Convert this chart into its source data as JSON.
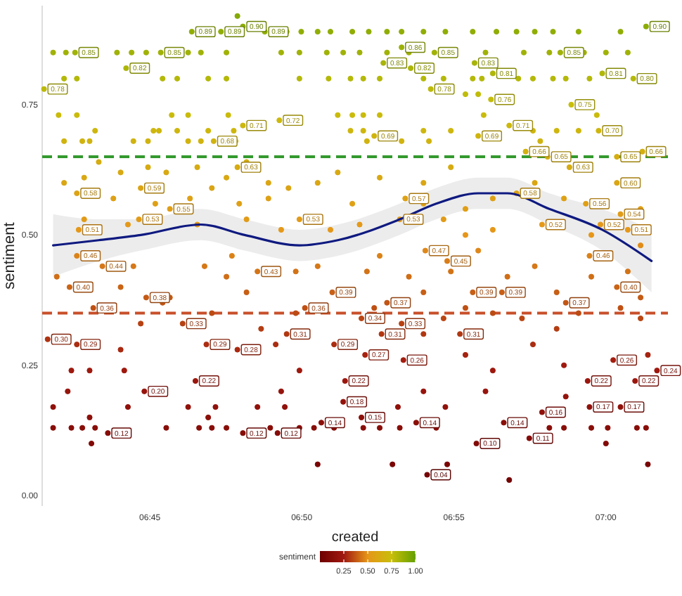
{
  "chart_data": {
    "type": "scatter",
    "xlabel": "created",
    "ylabel": "sentiment",
    "legend_title": "sentiment",
    "xlim": [
      6.691,
      7.034
    ],
    "xticks": [
      {
        "value": 6.75,
        "label": "06:45"
      },
      {
        "value": 6.8333,
        "label": "06:50"
      },
      {
        "value": 6.9167,
        "label": "06:55"
      },
      {
        "value": 7,
        "label": "07:00"
      }
    ],
    "ylim": [
      -0.02,
      0.94
    ],
    "yticks": [
      {
        "value": 0,
        "label": "0.00"
      },
      0.25,
      {
        "value": 0.5,
        "label": "0.50"
      },
      0.75
    ],
    "clim": [
      0,
      1
    ],
    "cticks": [
      0.25,
      {
        "value": 0.5,
        "label": "0.50"
      },
      0.75,
      {
        "value": 1,
        "label": "1.00"
      }
    ],
    "ref_lines": [
      {
        "axis": "y",
        "value": 0.65,
        "color": "#33992e",
        "line_style": "dashed"
      },
      {
        "axis": "y",
        "value": 0.35,
        "color": "#c8502a",
        "line_style": "dashed"
      }
    ],
    "series": [
      {
        "type": "scatter",
        "marker": "circle",
        "x": [
          6.798,
          6.825,
          6.833,
          6.842,
          6.849,
          6.861,
          6.87,
          6.88,
          6.888,
          6.9,
          6.912,
          6.927,
          6.94,
          6.951,
          6.961,
          6.971,
          6.985,
          7.008,
          6.697,
          6.704,
          6.732,
          6.74,
          6.748,
          6.771,
          6.778,
          6.792,
          6.822,
          6.832,
          6.847,
          6.856,
          6.865,
          6.88,
          6.892,
          6.934,
          6.955,
          6.969,
          6.988,
          7.0,
          7.012,
          6.703,
          6.71,
          6.757,
          6.765,
          6.782,
          6.792,
          6.832,
          6.848,
          6.86,
          6.867,
          6.876,
          6.9,
          6.911,
          6.927,
          6.932,
          6.952,
          6.96,
          6.971,
          6.978,
          6.991,
          6.923,
          6.93,
          6.7,
          6.71,
          6.762,
          6.771,
          6.793,
          6.853,
          6.861,
          6.867,
          6.876,
          6.933,
          6.995,
          6.72,
          6.752,
          6.755,
          6.765,
          6.782,
          6.796,
          6.86,
          6.867,
          6.9,
          6.915,
          6.96,
          6.973,
          6.985,
          6.703,
          6.713,
          6.717,
          6.741,
          6.749,
          6.771,
          6.778,
          6.797,
          6.869,
          6.888,
          6.903,
          6.964,
          6.722,
          6.734,
          6.749,
          6.759,
          6.776,
          6.792,
          6.803,
          6.815,
          6.714,
          6.703,
          6.73,
          6.753,
          6.772,
          6.784,
          6.799,
          6.815,
          6.826,
          6.842,
          6.853,
          6.861,
          6.876,
          6.9,
          6.915,
          6.9,
          6.923,
          6.938,
          6.961,
          6.977,
          7.019,
          6.911,
          6.865,
          6.714,
          6.738,
          6.776,
          6.803,
          6.822,
          6.849,
          6.923,
          6.938,
          6.992,
          7.019,
          6.699,
          6.734,
          6.741,
          6.761,
          6.78,
          6.792,
          6.795,
          6.803,
          6.83,
          6.842,
          6.869,
          6.876,
          6.892,
          6.9,
          6.915,
          6.93,
          6.946,
          6.961,
          6.973,
          6.992,
          7.012,
          7.019,
          6.784,
          6.757,
          6.873,
          6.923,
          6.985,
          7.008,
          6.745,
          6.811,
          6.83,
          6.9,
          6.911,
          6.938,
          6.954,
          6.973,
          7.019,
          6.734,
          6.819,
          6.923,
          6.96,
          7.023,
          6.707,
          6.717,
          6.736,
          6.832,
          6.938,
          6.977,
          6.705,
          6.822,
          6.9,
          6.934,
          6.978,
          6.697,
          6.738,
          6.771,
          6.786,
          6.809,
          6.824,
          6.886,
          6.912,
          6.697,
          6.707,
          6.713,
          6.72,
          6.759,
          6.777,
          6.784,
          6.792,
          6.816,
          6.832,
          6.84,
          6.851,
          6.867,
          6.876,
          6.887,
          6.907,
          6.969,
          6.977,
          6.992,
          7.001,
          7.017,
          7.022,
          6.718,
          6.717,
          6.782,
          6.842,
          6.883,
          6.913,
          6.947,
          7.023,
          7.0
        ],
        "values": [
          0.92,
          0.89,
          0.89,
          0.89,
          0.89,
          0.89,
          0.89,
          0.89,
          0.89,
          0.89,
          0.89,
          0.89,
          0.89,
          0.89,
          0.89,
          0.89,
          0.89,
          0.89,
          0.85,
          0.85,
          0.85,
          0.85,
          0.85,
          0.85,
          0.85,
          0.85,
          0.85,
          0.85,
          0.85,
          0.85,
          0.85,
          0.85,
          0.85,
          0.85,
          0.85,
          0.85,
          0.85,
          0.85,
          0.85,
          0.8,
          0.8,
          0.8,
          0.8,
          0.8,
          0.8,
          0.8,
          0.8,
          0.8,
          0.8,
          0.8,
          0.8,
          0.8,
          0.8,
          0.8,
          0.8,
          0.8,
          0.8,
          0.8,
          0.8,
          0.77,
          0.77,
          0.73,
          0.73,
          0.73,
          0.73,
          0.73,
          0.73,
          0.73,
          0.73,
          0.73,
          0.73,
          0.73,
          0.7,
          0.7,
          0.7,
          0.7,
          0.7,
          0.7,
          0.7,
          0.7,
          0.7,
          0.7,
          0.7,
          0.7,
          0.7,
          0.68,
          0.68,
          0.68,
          0.68,
          0.68,
          0.68,
          0.68,
          0.68,
          0.68,
          0.68,
          0.68,
          0.68,
          0.64,
          0.62,
          0.63,
          0.62,
          0.63,
          0.61,
          0.64,
          0.6,
          0.61,
          0.6,
          0.57,
          0.56,
          0.57,
          0.59,
          0.56,
          0.57,
          0.59,
          0.6,
          0.62,
          0.56,
          0.61,
          0.6,
          0.63,
          0.56,
          0.55,
          0.57,
          0.6,
          0.57,
          0.55,
          0.53,
          0.52,
          0.53,
          0.52,
          0.52,
          0.53,
          0.51,
          0.51,
          0.5,
          0.51,
          0.5,
          0.48,
          0.42,
          0.4,
          0.44,
          0.38,
          0.44,
          0.42,
          0.46,
          0.39,
          0.43,
          0.44,
          0.43,
          0.46,
          0.42,
          0.39,
          0.43,
          0.47,
          0.42,
          0.44,
          0.39,
          0.42,
          0.43,
          0.38,
          0.35,
          0.37,
          0.36,
          0.36,
          0.35,
          0.36,
          0.33,
          0.32,
          0.35,
          0.31,
          0.34,
          0.35,
          0.34,
          0.32,
          0.34,
          0.28,
          0.29,
          0.27,
          0.29,
          0.27,
          0.24,
          0.24,
          0.24,
          0.24,
          0.24,
          0.25,
          0.2,
          0.2,
          0.2,
          0.2,
          0.19,
          0.17,
          0.17,
          0.17,
          0.17,
          0.17,
          0.17,
          0.17,
          0.17,
          0.13,
          0.13,
          0.13,
          0.13,
          0.13,
          0.13,
          0.13,
          0.13,
          0.13,
          0.13,
          0.13,
          0.13,
          0.13,
          0.13,
          0.13,
          0.13,
          0.13,
          0.13,
          0.13,
          0.13,
          0.13,
          0.13,
          0.1,
          0.15,
          0.15,
          0.06,
          0.06,
          0.06,
          0.03,
          0.06,
          0.1
        ],
        "cvalues": [
          0.92,
          0.89,
          0.89,
          0.89,
          0.89,
          0.89,
          0.89,
          0.89,
          0.89,
          0.89,
          0.89,
          0.89,
          0.89,
          0.89,
          0.89,
          0.89,
          0.89,
          0.89,
          0.85,
          0.85,
          0.85,
          0.85,
          0.85,
          0.85,
          0.85,
          0.85,
          0.85,
          0.85,
          0.85,
          0.85,
          0.85,
          0.85,
          0.85,
          0.85,
          0.85,
          0.85,
          0.85,
          0.85,
          0.85,
          0.8,
          0.8,
          0.8,
          0.8,
          0.8,
          0.8,
          0.8,
          0.8,
          0.8,
          0.8,
          0.8,
          0.8,
          0.8,
          0.8,
          0.8,
          0.8,
          0.8,
          0.8,
          0.8,
          0.8,
          0.77,
          0.77,
          0.73,
          0.73,
          0.73,
          0.73,
          0.73,
          0.73,
          0.73,
          0.73,
          0.73,
          0.73,
          0.73,
          0.7,
          0.7,
          0.7,
          0.7,
          0.7,
          0.7,
          0.7,
          0.7,
          0.7,
          0.7,
          0.7,
          0.7,
          0.7,
          0.68,
          0.68,
          0.68,
          0.68,
          0.68,
          0.68,
          0.68,
          0.68,
          0.68,
          0.68,
          0.68,
          0.68,
          0.64,
          0.62,
          0.63,
          0.62,
          0.63,
          0.61,
          0.64,
          0.6,
          0.61,
          0.6,
          0.57,
          0.56,
          0.57,
          0.59,
          0.56,
          0.57,
          0.59,
          0.6,
          0.62,
          0.56,
          0.61,
          0.6,
          0.63,
          0.56,
          0.55,
          0.57,
          0.6,
          0.57,
          0.55,
          0.53,
          0.52,
          0.53,
          0.52,
          0.52,
          0.53,
          0.51,
          0.51,
          0.5,
          0.51,
          0.5,
          0.48,
          0.42,
          0.4,
          0.44,
          0.38,
          0.44,
          0.42,
          0.46,
          0.39,
          0.43,
          0.44,
          0.43,
          0.46,
          0.42,
          0.39,
          0.43,
          0.47,
          0.42,
          0.44,
          0.39,
          0.42,
          0.43,
          0.38,
          0.35,
          0.37,
          0.36,
          0.36,
          0.35,
          0.36,
          0.33,
          0.32,
          0.35,
          0.31,
          0.34,
          0.35,
          0.34,
          0.32,
          0.34,
          0.28,
          0.29,
          0.27,
          0.29,
          0.27,
          0.24,
          0.24,
          0.24,
          0.24,
          0.24,
          0.25,
          0.2,
          0.2,
          0.2,
          0.2,
          0.19,
          0.17,
          0.17,
          0.17,
          0.17,
          0.17,
          0.17,
          0.17,
          0.17,
          0.13,
          0.13,
          0.13,
          0.13,
          0.13,
          0.13,
          0.13,
          0.13,
          0.13,
          0.13,
          0.13,
          0.13,
          0.13,
          0.13,
          0.13,
          0.13,
          0.13,
          0.13,
          0.13,
          0.13,
          0.13,
          0.13,
          0.1,
          0.15,
          0.15,
          0.06,
          0.06,
          0.06,
          0.03,
          0.06,
          0.1
        ],
        "colors": [
          "#84aa03",
          "#90ad04",
          "#90ad04",
          "#90ad04",
          "#90ad04",
          "#90ad04",
          "#90ad04",
          "#90ad04",
          "#90ad04",
          "#90ad04",
          "#90ad04",
          "#90ad04",
          "#90ad04",
          "#90ad04",
          "#90ad04",
          "#90ad04",
          "#90ad04",
          "#90ad04",
          "#a0b206",
          "#a0b206",
          "#a0b206",
          "#a0b206",
          "#a0b206",
          "#a0b206",
          "#a0b206",
          "#a0b206",
          "#a0b206",
          "#a0b206",
          "#a0b206",
          "#a0b206",
          "#a0b206",
          "#a0b206",
          "#a0b206",
          "#a0b206",
          "#a0b206",
          "#a0b206",
          "#a0b206",
          "#a0b206",
          "#a0b206",
          "#b4b808",
          "#b4b808",
          "#b4b808",
          "#b4b808",
          "#b4b808",
          "#b4b808",
          "#b4b808",
          "#b4b808",
          "#b4b808",
          "#b4b808",
          "#b4b808",
          "#b4b808",
          "#b4b808",
          "#b4b808",
          "#b4b808",
          "#b4b808",
          "#b4b808",
          "#b4b808",
          "#b4b808",
          "#b4b808",
          "#c0bc09",
          "#c0bc09",
          "#cabb0b",
          "#cabb0b",
          "#cabb0b",
          "#cabb0b",
          "#cabb0b",
          "#cabb0b",
          "#cabb0b",
          "#cabb0b",
          "#cabb0b",
          "#cabb0b",
          "#cabb0b",
          "#ceb60d",
          "#ceb60d",
          "#ceb60d",
          "#ceb60d",
          "#ceb60d",
          "#ceb60d",
          "#ceb60d",
          "#ceb60d",
          "#ceb60d",
          "#ceb60d",
          "#ceb60d",
          "#ceb60d",
          "#ceb60d",
          "#d0b30e",
          "#d0b30e",
          "#d0b30e",
          "#d0b30e",
          "#d0b30e",
          "#d0b30e",
          "#d0b30e",
          "#d0b30e",
          "#d0b30e",
          "#d0b30e",
          "#d0b30e",
          "#d0b30e",
          "#d5ac11",
          "#d8a912",
          "#d6ab11",
          "#d8a912",
          "#d6ab11",
          "#d9a812",
          "#d5ac11",
          "#daa613",
          "#d9a812",
          "#daa613",
          "#dea115",
          "#dfa015",
          "#dea115",
          "#dba414",
          "#dfa015",
          "#dea115",
          "#dba414",
          "#daa613",
          "#d8a912",
          "#dfa015",
          "#d9a812",
          "#daa613",
          "#d6ab11",
          "#dfa015",
          "#e09e16",
          "#dea115",
          "#daa613",
          "#dea115",
          "#e09e16",
          "#e29b17",
          "#e49918",
          "#e29b17",
          "#e49918",
          "#e49918",
          "#e29b17",
          "#e59818",
          "#e59818",
          "#e69619",
          "#e59818",
          "#e69619",
          "#e08c18",
          "#d06e16",
          "#ca6415",
          "#d57817",
          "#c45a14",
          "#d57817",
          "#d06e16",
          "#db8217",
          "#c75f15",
          "#d27316",
          "#d57817",
          "#d27316",
          "#db8217",
          "#d06e16",
          "#c75f15",
          "#d27316",
          "#de8718",
          "#d06e16",
          "#d57817",
          "#c75f15",
          "#d06e16",
          "#d27316",
          "#c45a14",
          "#bc4b13",
          "#c25514",
          "#bf5013",
          "#bf5013",
          "#bc4b13",
          "#bf5013",
          "#b64112",
          "#b43c12",
          "#bc4b13",
          "#b13711",
          "#b94613",
          "#bc4b13",
          "#b94613",
          "#b43c12",
          "#b94613",
          "#a82810",
          "#ab2d11",
          "#a62310",
          "#ab2d11",
          "#a62310",
          "#9e180e",
          "#9e180e",
          "#9e180e",
          "#9e180e",
          "#9e180e",
          "#a0190f",
          "#96140c",
          "#96140c",
          "#96140c",
          "#96140c",
          "#94130b",
          "#90110a",
          "#90110a",
          "#90110a",
          "#90110a",
          "#90110a",
          "#90110a",
          "#90110a",
          "#90110a",
          "#880d08",
          "#880d08",
          "#880d08",
          "#880d08",
          "#880d08",
          "#880d08",
          "#880d08",
          "#880d08",
          "#880d08",
          "#880d08",
          "#880d08",
          "#880d08",
          "#880d08",
          "#880d08",
          "#880d08",
          "#880d08",
          "#880d08",
          "#880d08",
          "#880d08",
          "#880d08",
          "#880d08",
          "#880d08",
          "#820a06",
          "#8c0f09",
          "#8c0f09",
          "#7a0604",
          "#7a0604",
          "#7a0604",
          "#740302",
          "#7a0604",
          "#820a06"
        ]
      },
      {
        "type": "scatter",
        "marker": "circle",
        "x": [
          6.801,
          7.022,
          6.773,
          6.789,
          6.813,
          6.888,
          6.709,
          6.756,
          6.906,
          6.975,
          6.878,
          6.928,
          6.737,
          6.893,
          6.938,
          6.998,
          7.015,
          6.692,
          6.904,
          6.937,
          6.981,
          6.821,
          6.801,
          6.947,
          6.996,
          6.873,
          6.93,
          6.785,
          6.956,
          7.02,
          6.968,
          7.006,
          6.98,
          6.798,
          6.71,
          6.745,
          6.761,
          6.744,
          6.832,
          6.711,
          7.006,
          6.89,
          6.951,
          6.989,
          7.008,
          6.887,
          6.965,
          6.997,
          7.012,
          6.71,
          6.724,
          6.809,
          6.706,
          6.748,
          6.719,
          6.85,
          6.835,
          6.901,
          6.913,
          6.991,
          7.006,
          6.927,
          6.943,
          6.978,
          6.88,
          6.768,
          6.694,
          6.71,
          6.781,
          6.798,
          6.825,
          6.851,
          6.866,
          6.888,
          6.877,
          6.92,
          6.868,
          6.889,
          7.004,
          6.99,
          7.016,
          7.028,
          6.775,
          6.857,
          6.747,
          6.856,
          6.844,
          6.991,
          7.008,
          6.965,
          6.866,
          6.896,
          6.944,
          6.958,
          6.929,
          6.727,
          6.801,
          6.82,
          6.902
        ],
        "values": [
          0.9,
          0.9,
          0.89,
          0.89,
          0.89,
          0.86,
          0.85,
          0.85,
          0.85,
          0.85,
          0.83,
          0.83,
          0.82,
          0.82,
          0.81,
          0.81,
          0.8,
          0.78,
          0.78,
          0.76,
          0.75,
          0.72,
          0.71,
          0.71,
          0.7,
          0.69,
          0.69,
          0.68,
          0.66,
          0.66,
          0.65,
          0.65,
          0.63,
          0.63,
          0.58,
          0.59,
          0.55,
          0.53,
          0.53,
          0.51,
          0.6,
          0.57,
          0.58,
          0.56,
          0.54,
          0.53,
          0.52,
          0.52,
          0.51,
          0.46,
          0.44,
          0.43,
          0.4,
          0.38,
          0.36,
          0.39,
          0.36,
          0.47,
          0.45,
          0.46,
          0.4,
          0.39,
          0.39,
          0.37,
          0.37,
          0.33,
          0.3,
          0.29,
          0.29,
          0.28,
          0.31,
          0.29,
          0.34,
          0.33,
          0.31,
          0.31,
          0.27,
          0.26,
          0.26,
          0.22,
          0.22,
          0.24,
          0.22,
          0.22,
          0.2,
          0.18,
          0.14,
          0.17,
          0.17,
          0.16,
          0.15,
          0.14,
          0.14,
          0.11,
          0.1,
          0.12,
          0.12,
          0.12,
          0.04
        ],
        "cvalues": [
          0.9,
          0.9,
          0.89,
          0.89,
          0.89,
          0.86,
          0.85,
          0.85,
          0.85,
          0.85,
          0.83,
          0.83,
          0.82,
          0.82,
          0.81,
          0.81,
          0.8,
          0.78,
          0.78,
          0.76,
          0.75,
          0.72,
          0.71,
          0.71,
          0.7,
          0.69,
          0.69,
          0.68,
          0.66,
          0.66,
          0.65,
          0.65,
          0.63,
          0.63,
          0.58,
          0.59,
          0.55,
          0.53,
          0.53,
          0.51,
          0.6,
          0.57,
          0.58,
          0.56,
          0.54,
          0.53,
          0.52,
          0.52,
          0.51,
          0.46,
          0.44,
          0.43,
          0.4,
          0.38,
          0.36,
          0.39,
          0.36,
          0.47,
          0.45,
          0.46,
          0.4,
          0.39,
          0.39,
          0.37,
          0.37,
          0.33,
          0.3,
          0.29,
          0.29,
          0.28,
          0.31,
          0.29,
          0.34,
          0.33,
          0.31,
          0.31,
          0.27,
          0.26,
          0.26,
          0.22,
          0.22,
          0.24,
          0.22,
          0.22,
          0.2,
          0.18,
          0.14,
          0.17,
          0.17,
          0.16,
          0.15,
          0.14,
          0.14,
          0.11,
          0.1,
          0.12,
          0.12,
          0.12,
          0.04
        ],
        "colors": [
          "#8cac04",
          "#8cac04",
          "#90ad04",
          "#90ad04",
          "#90ad04",
          "#9cb106",
          "#a0b206",
          "#a0b206",
          "#a0b206",
          "#a0b206",
          "#a8b407",
          "#a8b407",
          "#acb607",
          "#acb607",
          "#b0b708",
          "#b0b708",
          "#b4b808",
          "#bcba09",
          "#bcba09",
          "#c4bd0a",
          "#c8be0a",
          "#ccb90c",
          "#cdb80c",
          "#cdb80c",
          "#ceb60d",
          "#cfb40e",
          "#cfb40e",
          "#d0b30e",
          "#d3b00f",
          "#d3b00f",
          "#d4ae10",
          "#d4ae10",
          "#d6ab11",
          "#d6ab11",
          "#dca314",
          "#dba414",
          "#e09e16",
          "#e29b17",
          "#e29b17",
          "#e59818",
          "#daa613",
          "#dea115",
          "#dca314",
          "#dfa015",
          "#e19c17",
          "#e29b17",
          "#e49918",
          "#e49918",
          "#e59818",
          "#db8217",
          "#d57817",
          "#d27316",
          "#ca6415",
          "#c45a14",
          "#bf5013",
          "#c75f15",
          "#bf5013",
          "#de8718",
          "#d87d17",
          "#db8217",
          "#ca6415",
          "#c75f15",
          "#c75f15",
          "#c25514",
          "#c25514",
          "#b64112",
          "#ae3211",
          "#ab2d11",
          "#ab2d11",
          "#a82810",
          "#b13711",
          "#ab2d11",
          "#b94613",
          "#b64112",
          "#b13711",
          "#b13711",
          "#a62310",
          "#a31e0f",
          "#a31e0f",
          "#9a160d",
          "#9a160d",
          "#9e180e",
          "#9a160d",
          "#9a160d",
          "#96140c",
          "#92120b",
          "#8a0e08",
          "#90110a",
          "#90110a",
          "#8e100a",
          "#8c0f09",
          "#8a0e08",
          "#8a0e08",
          "#840b07",
          "#820a06",
          "#860c07",
          "#860c07",
          "#860c07",
          "#760402"
        ],
        "value_labels": [
          "0.90",
          "0.90",
          "0.89",
          "0.89",
          "0.89",
          "0.86",
          "0.85",
          "0.85",
          "0.85",
          "0.85",
          "0.83",
          "0.83",
          "0.82",
          "0.82",
          "0.81",
          "0.81",
          "0.80",
          "0.78",
          "0.78",
          "0.76",
          "0.75",
          "0.72",
          "0.71",
          "0.71",
          "0.70",
          "0.69",
          "0.69",
          "0.68",
          "0.66",
          "0.66",
          "0.65",
          "0.65",
          "0.63",
          "0.63",
          "0.58",
          "0.59",
          "0.55",
          "0.53",
          "0.53",
          "0.51",
          "0.60",
          "0.57",
          "0.58",
          "0.56",
          "0.54",
          "0.53",
          "0.52",
          "0.52",
          "0.51",
          "0.46",
          "0.44",
          "0.43",
          "0.40",
          "0.38",
          "0.36",
          "0.39",
          "0.36",
          "0.47",
          "0.45",
          "0.46",
          "0.40",
          "0.39",
          "0.39",
          "0.37",
          "0.37",
          "0.33",
          "0.30",
          "0.29",
          "0.29",
          "0.28",
          "0.31",
          "0.29",
          "0.34",
          "0.33",
          "0.31",
          "0.31",
          "0.27",
          "0.26",
          "0.26",
          "0.22",
          "0.22",
          "0.24",
          "0.22",
          "0.22",
          "0.20",
          "0.18",
          "0.14",
          "0.17",
          "0.17",
          "0.16",
          "0.15",
          "0.14",
          "0.14",
          "0.11",
          "0.10",
          "0.12",
          "0.12",
          "0.12",
          "0.04"
        ]
      },
      {
        "type": "line",
        "color": "#0f1a80",
        "x": [
          6.697,
          6.722,
          6.745,
          6.778,
          6.802,
          6.832,
          6.853,
          6.887,
          6.907,
          6.93,
          6.946,
          6.969,
          6.998,
          7.025
        ],
        "values": [
          0.48,
          0.49,
          0.5,
          0.52,
          0.5,
          0.48,
          0.49,
          0.53,
          0.56,
          0.58,
          0.58,
          0.55,
          0.51,
          0.45
        ],
        "lower": [
          0.42,
          0.45,
          0.47,
          0.49,
          0.47,
          0.45,
          0.46,
          0.5,
          0.53,
          0.55,
          0.55,
          0.52,
          0.47,
          0.39
        ],
        "upper": [
          0.54,
          0.53,
          0.53,
          0.55,
          0.53,
          0.51,
          0.52,
          0.56,
          0.59,
          0.61,
          0.61,
          0.58,
          0.55,
          0.51
        ]
      }
    ]
  }
}
